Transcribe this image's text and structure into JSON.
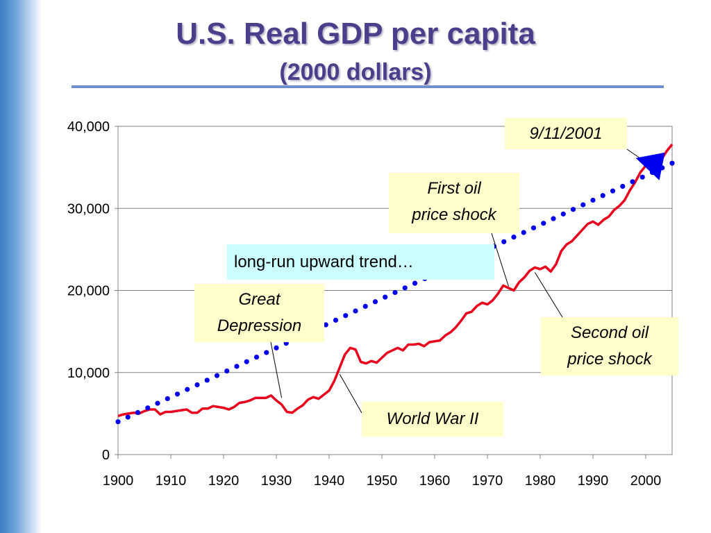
{
  "header": {
    "title": "U.S. Real GDP per capita",
    "subtitle": "(2000 dollars)"
  },
  "chart_data": {
    "type": "line",
    "ylim": [
      0,
      40000
    ],
    "xlim": [
      1900,
      2005
    ],
    "y_ticks": [
      0,
      10000,
      20000,
      30000,
      40000
    ],
    "y_tick_labels": [
      "0",
      "10,000",
      "20,000",
      "30,000",
      "40,000"
    ],
    "x_ticks": [
      1900,
      1910,
      1920,
      1930,
      1940,
      1950,
      1960,
      1970,
      1980,
      1990,
      2000
    ],
    "x_tick_labels": [
      "1900",
      "1910",
      "1920",
      "1930",
      "1940",
      "1950",
      "1960",
      "1970",
      "1980",
      "1990",
      "2000"
    ],
    "grid": true,
    "series": [
      {
        "color": "#e8001c",
        "style": "solid",
        "x": [
          1900,
          1901,
          1902,
          1903,
          1904,
          1905,
          1906,
          1907,
          1908,
          1909,
          1910,
          1911,
          1912,
          1913,
          1914,
          1915,
          1916,
          1917,
          1918,
          1919,
          1920,
          1921,
          1922,
          1923,
          1924,
          1925,
          1926,
          1927,
          1928,
          1929,
          1930,
          1931,
          1932,
          1933,
          1934,
          1935,
          1936,
          1937,
          1938,
          1939,
          1940,
          1941,
          1942,
          1943,
          1944,
          1945,
          1946,
          1947,
          1948,
          1949,
          1950,
          1951,
          1952,
          1953,
          1954,
          1955,
          1956,
          1957,
          1958,
          1959,
          1960,
          1961,
          1962,
          1963,
          1964,
          1965,
          1966,
          1967,
          1968,
          1969,
          1970,
          1971,
          1972,
          1973,
          1974,
          1975,
          1976,
          1977,
          1978,
          1979,
          1980,
          1981,
          1982,
          1983,
          1984,
          1985,
          1986,
          1987,
          1988,
          1989,
          1990,
          1991,
          1992,
          1993,
          1994,
          1995,
          1996,
          1997,
          1998,
          1999,
          2000,
          2001,
          2002,
          2003,
          2004,
          2005
        ],
        "values": [
          4700,
          4900,
          5000,
          5100,
          5000,
          5300,
          5500,
          5500,
          4900,
          5200,
          5200,
          5300,
          5400,
          5500,
          5100,
          5100,
          5600,
          5600,
          5900,
          5800,
          5700,
          5500,
          5800,
          6300,
          6400,
          6600,
          6900,
          6900,
          6900,
          7200,
          6600,
          6100,
          5200,
          5100,
          5600,
          6000,
          6700,
          7000,
          6800,
          7300,
          7800,
          9000,
          10600,
          12200,
          13000,
          12800,
          11300,
          11100,
          11400,
          11200,
          11800,
          12400,
          12700,
          13000,
          12700,
          13400,
          13400,
          13500,
          13200,
          13700,
          13800,
          13900,
          14500,
          14900,
          15500,
          16300,
          17200,
          17400,
          18100,
          18500,
          18300,
          18800,
          19600,
          20600,
          20300,
          20000,
          21000,
          21600,
          22400,
          22800,
          22600,
          22900,
          22300,
          23200,
          24800,
          25600,
          26000,
          26700,
          27400,
          28100,
          28400,
          28000,
          28600,
          29000,
          29800,
          30300,
          31000,
          32200,
          33200,
          34400,
          35200,
          35000,
          35300,
          36000,
          37000,
          37800
        ]
      },
      {
        "color": "#0000ee",
        "style": "dotted",
        "name": "long-run upward trend…",
        "x": [
          1900,
          2005
        ],
        "values": [
          4000,
          35500
        ]
      }
    ],
    "annotations": [
      {
        "id": "sep11",
        "lines": [
          "9/11/2001"
        ],
        "at_year": 2001,
        "at_value": 35200
      },
      {
        "id": "oil1",
        "lines": [
          "First oil",
          "price shock"
        ],
        "at_year": 1974,
        "at_value": 20500
      },
      {
        "id": "trend",
        "lines": [
          "long-run upward trend…"
        ]
      },
      {
        "id": "depression",
        "lines": [
          "Great",
          "Depression"
        ],
        "at_year": 1931,
        "at_value": 6900
      },
      {
        "id": "oil2",
        "lines": [
          "Second oil",
          "price shock"
        ],
        "at_year": 1979,
        "at_value": 22200
      },
      {
        "id": "ww2",
        "lines": [
          "World War II"
        ],
        "at_year": 1942,
        "at_value": 9800
      }
    ]
  }
}
